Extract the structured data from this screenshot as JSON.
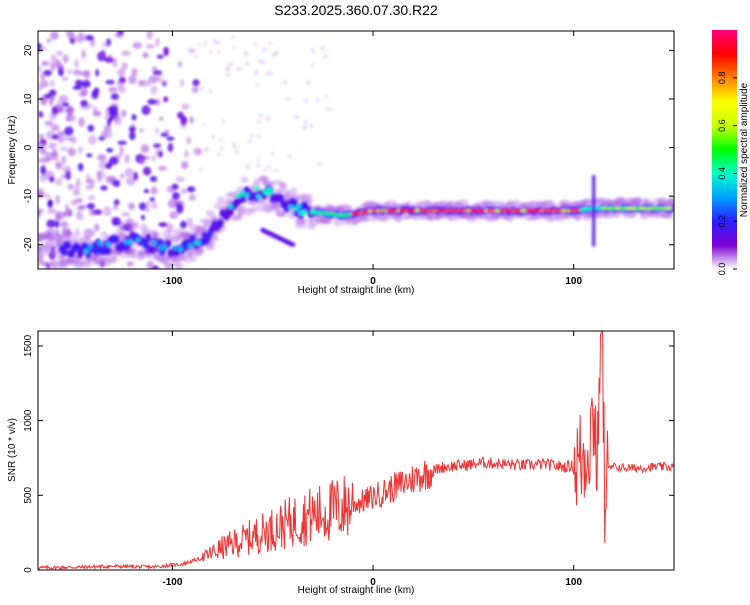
{
  "title": "S233.2025.360.07.30.R22",
  "chart_data": [
    {
      "type": "heatmap",
      "xlabel": "Height of straight line (km)",
      "ylabel": "Frequency (Hz)",
      "xlim": [
        -167,
        150
      ],
      "ylim": [
        -25,
        24
      ],
      "xticks": [
        -100,
        0,
        100
      ],
      "yticks": [
        20,
        10,
        0,
        -10,
        -20
      ],
      "colorbar": {
        "label": "Normalized spectral amplitude",
        "range": [
          0,
          1
        ],
        "ticks": [
          "0.0",
          "0.2",
          "0.4",
          "0.6",
          "0.8"
        ],
        "tick_values": [
          0.0,
          0.2,
          0.4,
          0.6,
          0.8
        ],
        "colors": [
          "#ffffff",
          "#7b00d4",
          "#2d1fff",
          "#00a0ff",
          "#00ffc8",
          "#00ff00",
          "#c8ff00",
          "#ffff00",
          "#ff8000",
          "#ff0000",
          "#ff0080"
        ]
      },
      "ridge": [
        {
          "x": -140,
          "y": -21
        },
        {
          "x": -120,
          "y": -19
        },
        {
          "x": -100,
          "y": -21
        },
        {
          "x": -85,
          "y": -19
        },
        {
          "x": -75,
          "y": -14
        },
        {
          "x": -65,
          "y": -10
        },
        {
          "x": -55,
          "y": -9
        },
        {
          "x": -45,
          "y": -11
        },
        {
          "x": -35,
          "y": -13
        },
        {
          "x": -15,
          "y": -14
        },
        {
          "x": 0,
          "y": -13
        },
        {
          "x": 50,
          "y": -13
        },
        {
          "x": 100,
          "y": -13
        },
        {
          "x": 110,
          "y": -12.5
        },
        {
          "x": 150,
          "y": -12.5
        }
      ]
    },
    {
      "type": "line",
      "xlabel": "Height of straight line (km)",
      "ylabel": "SNR (10 * v/v)",
      "xlim": [
        -167,
        150
      ],
      "ylim": [
        0,
        1600
      ],
      "xticks": [
        -100,
        0,
        100
      ],
      "yticks": [
        0,
        500,
        1000,
        1500
      ],
      "line_color": "#ee3333",
      "series": [
        {
          "x": [
            -167,
            -150,
            -130,
            -110,
            -95,
            -85,
            -75,
            -65,
            -55,
            -45,
            -35,
            -25,
            -15,
            -5,
            5,
            15,
            25,
            35,
            45,
            55,
            65,
            75,
            85,
            95,
            100,
            105,
            108,
            110,
            112,
            114,
            115,
            116,
            118,
            120,
            130,
            140,
            150
          ],
          "y": [
            15,
            18,
            25,
            20,
            40,
            80,
            150,
            200,
            250,
            300,
            350,
            380,
            420,
            460,
            520,
            580,
            640,
            690,
            700,
            720,
            710,
            700,
            710,
            690,
            700,
            750,
            900,
            1050,
            700,
            1580,
            900,
            650,
            680,
            690,
            680,
            690,
            690
          ]
        }
      ]
    }
  ]
}
